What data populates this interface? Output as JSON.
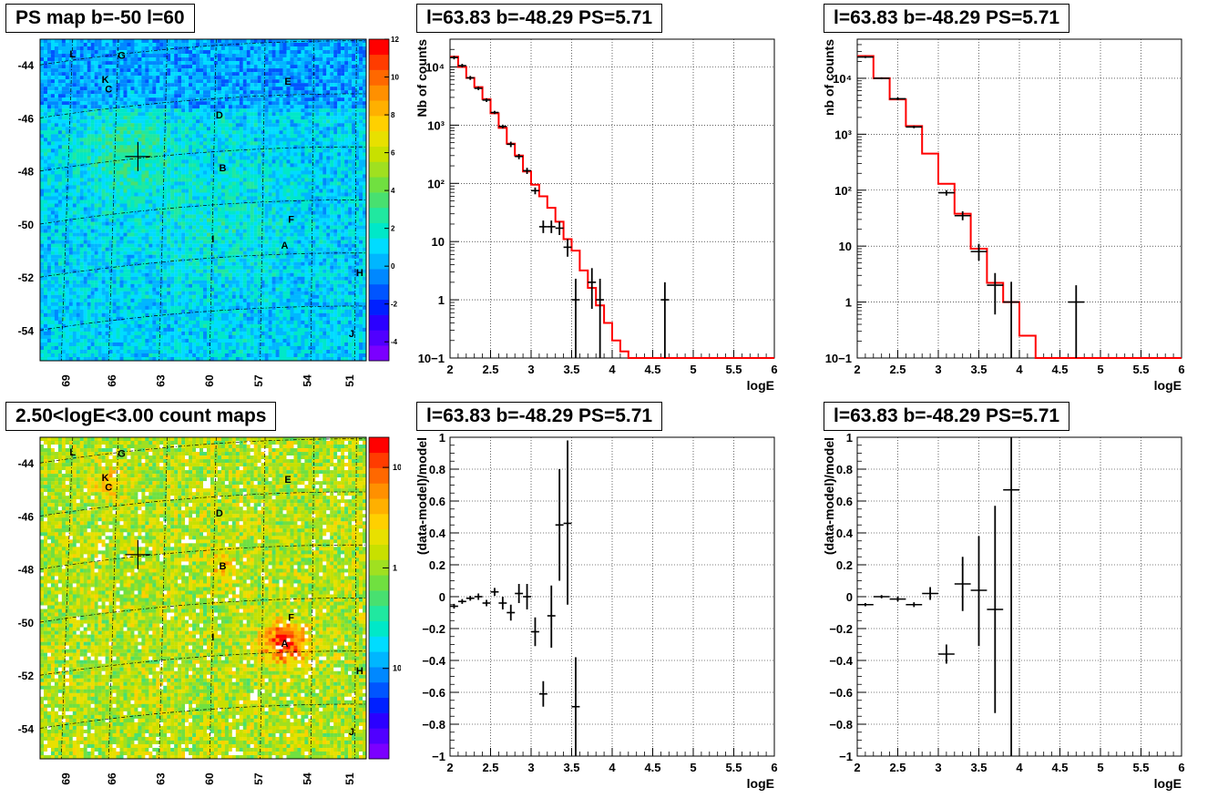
{
  "panels": {
    "map1": {
      "title": "PS map b=-50 l=60",
      "colorbar": {
        "type": "linear",
        "range": [
          -5,
          12
        ],
        "labels": [
          "12",
          "10",
          "8",
          "6",
          "4",
          "2",
          "0",
          "-2",
          "-4"
        ]
      },
      "lat_labels": [
        "-44",
        "-46",
        "-48",
        "-50",
        "-52",
        "-54"
      ],
      "lon_labels": [
        "69",
        "66",
        "63",
        "60",
        "57",
        "54",
        "51"
      ]
    },
    "map2": {
      "title": "2.50<logE<3.00 count maps",
      "colorbar": {
        "type": "log",
        "labels": [
          {
            "text": "10",
            "value": 10
          },
          {
            "text": "1",
            "value": 1
          },
          {
            "text": "10",
            "sup": "-1",
            "value": 0.1
          }
        ]
      },
      "lat_labels": [
        "-44",
        "-46",
        "-48",
        "-50",
        "-52",
        "-54"
      ],
      "lon_labels": [
        "69",
        "66",
        "63",
        "60",
        "57",
        "54",
        "51"
      ]
    },
    "source_labels": [
      "L",
      "G",
      "K",
      "C",
      "E",
      "D",
      "B",
      "F",
      "I",
      "A",
      "H",
      "J"
    ],
    "spec1": {
      "title": "l=63.83 b=-48.29 PS=5.71",
      "ylabel": "Nb of counts",
      "xlabel": "logE",
      "ytick_labels": [
        "10−1",
        "1",
        "10",
        "10²",
        "10³",
        "10⁴"
      ]
    },
    "spec2": {
      "title": "l=63.83 b=-48.29 PS=5.71",
      "ylabel": "nb of counts",
      "xlabel": "logE",
      "ytick_labels": [
        "10−1",
        "1",
        "10",
        "10²",
        "10³",
        "10⁴"
      ]
    },
    "res1": {
      "title": "l=63.83 b=-48.29 PS=5.71",
      "ylabel": "(data-model)/model",
      "xlabel": "logE"
    },
    "res2": {
      "title": "l=63.83 b=-48.29 PS=5.71",
      "ylabel": "(data-model)/model",
      "xlabel": "logE"
    },
    "xtick_labels": [
      "2",
      "2.5",
      "3",
      "3.5",
      "4",
      "4.5",
      "5",
      "5.5",
      "6"
    ],
    "res_ytick_labels": [
      "1",
      "0.8",
      "0.6",
      "0.4",
      "0.2",
      "0",
      "−0.2",
      "−0.4",
      "−0.6",
      "−0.8",
      "−1"
    ]
  },
  "colors": {
    "model": "#ff0000",
    "data": "#000000",
    "grid": "#000000"
  },
  "chart_data": [
    {
      "type": "line",
      "panel": "spec1",
      "xlabel": "logE",
      "ylabel": "Nb of counts",
      "xlim": [
        2,
        6
      ],
      "ylim": [
        0.1,
        30000
      ],
      "yscale": "log",
      "grid": true,
      "series": [
        {
          "name": "model",
          "style": "step",
          "bin_width": 0.1,
          "x": [
            2.0,
            2.1,
            2.2,
            2.3,
            2.4,
            2.5,
            2.6,
            2.7,
            2.8,
            2.9,
            3.0,
            3.1,
            3.2,
            3.3,
            3.4,
            3.5,
            3.6,
            3.7,
            3.8,
            3.9,
            4.0,
            4.1,
            4.2,
            4.3,
            4.4,
            4.5,
            4.6,
            4.7,
            4.8,
            4.9,
            5.0,
            5.1,
            5.2,
            5.3,
            5.4,
            5.5,
            5.6,
            5.7,
            5.8,
            5.9
          ],
          "values": [
            15000,
            10000,
            6500,
            4500,
            2800,
            1600,
            900,
            480,
            300,
            160,
            95,
            60,
            38,
            22,
            11,
            7,
            3.2,
            1.6,
            0.8,
            0.4,
            0.2,
            0.13,
            0.1,
            0.1,
            0.1,
            0.1,
            0.1,
            0.1,
            0.1,
            0.1,
            0.1,
            0.1,
            0.1,
            0.1,
            0.1,
            0.1,
            0.1,
            0.1,
            0.1,
            0.1
          ]
        },
        {
          "name": "data",
          "style": "errorbar",
          "bin_width": 0.1,
          "points": [
            {
              "x": 2.05,
              "y": 14500,
              "lo": 13500,
              "hi": 15500
            },
            {
              "x": 2.15,
              "y": 10500,
              "lo": 9800,
              "hi": 11300
            },
            {
              "x": 2.25,
              "y": 6500,
              "lo": 6000,
              "hi": 7000
            },
            {
              "x": 2.35,
              "y": 4300,
              "lo": 4000,
              "hi": 4600
            },
            {
              "x": 2.45,
              "y": 2700,
              "lo": 2500,
              "hi": 2900
            },
            {
              "x": 2.55,
              "y": 1650,
              "lo": 1550,
              "hi": 1760
            },
            {
              "x": 2.65,
              "y": 950,
              "lo": 880,
              "hi": 1020
            },
            {
              "x": 2.75,
              "y": 470,
              "lo": 420,
              "hi": 520
            },
            {
              "x": 2.85,
              "y": 290,
              "lo": 260,
              "hi": 320
            },
            {
              "x": 2.95,
              "y": 165,
              "lo": 145,
              "hi": 185
            },
            {
              "x": 3.05,
              "y": 75,
              "lo": 65,
              "hi": 85
            },
            {
              "x": 3.15,
              "y": 18,
              "lo": 14,
              "hi": 23
            },
            {
              "x": 3.25,
              "y": 18,
              "lo": 14,
              "hi": 23
            },
            {
              "x": 3.35,
              "y": 17,
              "lo": 13,
              "hi": 22
            },
            {
              "x": 3.45,
              "y": 8,
              "lo": 5.5,
              "hi": 11
            },
            {
              "x": 3.55,
              "y": 1,
              "lo": 0.1,
              "hi": 2.3
            },
            {
              "x": 3.75,
              "y": 2,
              "lo": 0.7,
              "hi": 3.5
            },
            {
              "x": 3.85,
              "y": 1,
              "lo": 0.1,
              "hi": 2.3
            },
            {
              "x": 4.65,
              "y": 1,
              "lo": 0.1,
              "hi": 2.0
            }
          ]
        }
      ]
    },
    {
      "type": "line",
      "panel": "spec2",
      "xlabel": "logE",
      "ylabel": "nb of counts",
      "xlim": [
        2,
        6
      ],
      "ylim": [
        0.1,
        50000
      ],
      "yscale": "log",
      "grid": true,
      "series": [
        {
          "name": "model",
          "style": "step",
          "bin_width": 0.2,
          "x": [
            2.0,
            2.2,
            2.4,
            2.6,
            2.8,
            3.0,
            3.2,
            3.4,
            3.6,
            3.8,
            4.0,
            4.2,
            4.4,
            4.6,
            4.8,
            5.0,
            5.2,
            5.4,
            5.6,
            5.8
          ],
          "values": [
            25000,
            10000,
            4200,
            1400,
            450,
            130,
            38,
            9,
            2.2,
            1,
            0.25,
            0.1,
            0.1,
            0.1,
            0.1,
            0.1,
            0.1,
            0.1,
            0.1,
            0.1
          ]
        },
        {
          "name": "data",
          "style": "errorbar",
          "bin_width": 0.2,
          "points": [
            {
              "x": 2.1,
              "y": 24000,
              "lo": 23000,
              "hi": 25000
            },
            {
              "x": 2.3,
              "y": 10000,
              "lo": 9600,
              "hi": 10400
            },
            {
              "x": 2.5,
              "y": 4300,
              "lo": 4050,
              "hi": 4550
            },
            {
              "x": 2.7,
              "y": 1350,
              "lo": 1280,
              "hi": 1420
            },
            {
              "x": 3.1,
              "y": 90,
              "lo": 80,
              "hi": 100
            },
            {
              "x": 3.3,
              "y": 35,
              "lo": 29,
              "hi": 42
            },
            {
              "x": 3.5,
              "y": 8,
              "lo": 5.5,
              "hi": 11
            },
            {
              "x": 3.7,
              "y": 2,
              "lo": 0.6,
              "hi": 3.3
            },
            {
              "x": 3.9,
              "y": 1,
              "lo": 0.1,
              "hi": 2.3
            },
            {
              "x": 4.7,
              "y": 1,
              "lo": 0.1,
              "hi": 2.0
            }
          ]
        }
      ]
    },
    {
      "type": "scatter",
      "panel": "res1",
      "xlabel": "logE",
      "ylabel": "(data-model)/model",
      "xlim": [
        2,
        6
      ],
      "ylim": [
        -1,
        1
      ],
      "grid": true,
      "series": [
        {
          "name": "data",
          "style": "errorbar",
          "bin_width": 0.1,
          "points": [
            {
              "x": 2.05,
              "y": -0.06,
              "lo": -0.075,
              "hi": -0.045
            },
            {
              "x": 2.15,
              "y": -0.03,
              "lo": -0.045,
              "hi": -0.015
            },
            {
              "x": 2.25,
              "y": -0.01,
              "lo": -0.025,
              "hi": 0.005
            },
            {
              "x": 2.35,
              "y": 0.0,
              "lo": -0.02,
              "hi": 0.02
            },
            {
              "x": 2.45,
              "y": -0.04,
              "lo": -0.06,
              "hi": -0.02
            },
            {
              "x": 2.55,
              "y": 0.03,
              "lo": 0.005,
              "hi": 0.055
            },
            {
              "x": 2.65,
              "y": -0.04,
              "lo": -0.08,
              "hi": 0.0
            },
            {
              "x": 2.75,
              "y": -0.1,
              "lo": -0.15,
              "hi": -0.05
            },
            {
              "x": 2.85,
              "y": 0.02,
              "lo": -0.04,
              "hi": 0.08
            },
            {
              "x": 2.95,
              "y": 0.0,
              "lo": -0.08,
              "hi": 0.08
            },
            {
              "x": 3.05,
              "y": -0.22,
              "lo": -0.31,
              "hi": -0.13
            },
            {
              "x": 3.15,
              "y": -0.61,
              "lo": -0.69,
              "hi": -0.53
            },
            {
              "x": 3.25,
              "y": -0.12,
              "lo": -0.32,
              "hi": 0.07
            },
            {
              "x": 3.35,
              "y": 0.45,
              "lo": 0.1,
              "hi": 0.8
            },
            {
              "x": 3.45,
              "y": 0.46,
              "lo": -0.05,
              "hi": 0.98
            },
            {
              "x": 3.55,
              "y": -0.69,
              "lo": -1.0,
              "hi": -0.38
            }
          ]
        }
      ]
    },
    {
      "type": "scatter",
      "panel": "res2",
      "xlabel": "logE",
      "ylabel": "(data-model)/model",
      "xlim": [
        2,
        6
      ],
      "ylim": [
        -1,
        1
      ],
      "grid": true,
      "series": [
        {
          "name": "data",
          "style": "errorbar",
          "bin_width": 0.2,
          "points": [
            {
              "x": 2.1,
              "y": -0.05,
              "lo": -0.06,
              "hi": -0.04
            },
            {
              "x": 2.3,
              "y": 0.0,
              "lo": -0.01,
              "hi": 0.01
            },
            {
              "x": 2.5,
              "y": -0.015,
              "lo": -0.03,
              "hi": 0.0
            },
            {
              "x": 2.7,
              "y": -0.05,
              "lo": -0.065,
              "hi": -0.035
            },
            {
              "x": 2.9,
              "y": 0.02,
              "lo": -0.02,
              "hi": 0.06
            },
            {
              "x": 3.1,
              "y": -0.36,
              "lo": -0.42,
              "hi": -0.3
            },
            {
              "x": 3.3,
              "y": 0.08,
              "lo": -0.09,
              "hi": 0.25
            },
            {
              "x": 3.5,
              "y": 0.04,
              "lo": -0.31,
              "hi": 0.38
            },
            {
              "x": 3.7,
              "y": -0.08,
              "lo": -0.73,
              "hi": 0.57
            },
            {
              "x": 3.9,
              "y": 0.67,
              "lo": -1.0,
              "hi": 1.0
            }
          ]
        }
      ]
    },
    {
      "type": "heatmap",
      "panel": "map1",
      "xlabel": "",
      "ylabel": "",
      "grid": true,
      "note_marker": "large cross marker near l=64, b=-48"
    },
    {
      "type": "heatmap",
      "panel": "map2",
      "xlabel": "",
      "ylabel": "",
      "grid": true
    }
  ]
}
